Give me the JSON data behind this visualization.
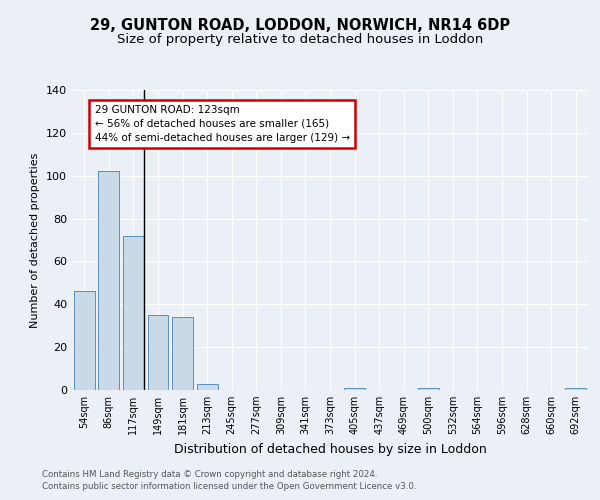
{
  "title1": "29, GUNTON ROAD, LODDON, NORWICH, NR14 6DP",
  "title2": "Size of property relative to detached houses in Loddon",
  "xlabel": "Distribution of detached houses by size in Loddon",
  "ylabel": "Number of detached properties",
  "categories": [
    "54sqm",
    "86sqm",
    "117sqm",
    "149sqm",
    "181sqm",
    "213sqm",
    "245sqm",
    "277sqm",
    "309sqm",
    "341sqm",
    "373sqm",
    "405sqm",
    "437sqm",
    "469sqm",
    "500sqm",
    "532sqm",
    "564sqm",
    "596sqm",
    "628sqm",
    "660sqm",
    "692sqm"
  ],
  "values": [
    46,
    102,
    72,
    35,
    34,
    3,
    0,
    0,
    0,
    0,
    0,
    1,
    0,
    0,
    1,
    0,
    0,
    0,
    0,
    0,
    1
  ],
  "bar_color": "#c9d9e8",
  "bar_edge_color": "#5a8fbf",
  "annotation_text": "29 GUNTON ROAD: 123sqm\n← 56% of detached houses are smaller (165)\n44% of semi-detached houses are larger (129) →",
  "annotation_box_color": "#ffffff",
  "annotation_box_edge_color": "#cc0000",
  "vline_color": "#000000",
  "ylim": [
    0,
    140
  ],
  "yticks": [
    0,
    20,
    40,
    60,
    80,
    100,
    120,
    140
  ],
  "footer1": "Contains HM Land Registry data © Crown copyright and database right 2024.",
  "footer2": "Contains public sector information licensed under the Open Government Licence v3.0.",
  "bg_color": "#eaf0f6",
  "plot_bg_color": "#eaf0f6",
  "grid_color": "#ffffff",
  "title_fontsize": 10.5,
  "subtitle_fontsize": 9.5
}
